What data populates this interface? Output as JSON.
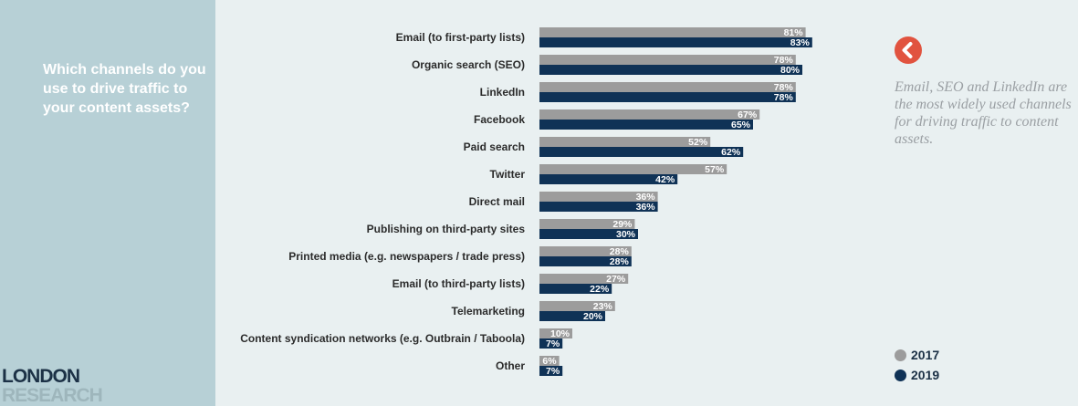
{
  "sidebar": {
    "question": "Which channels do you use to drive traffic to your content assets?",
    "logo_line1": "LONDON",
    "logo_line2": "RESEARCH"
  },
  "note": {
    "icon": "chevron-left-icon",
    "text": "Email, SEO and LinkedIn are the most widely used channels for driving traffic to content assets."
  },
  "colors": {
    "series_2017": "#9c9c9c",
    "series_2019": "#0f3256",
    "accent": "#e1533f"
  },
  "chart_data": {
    "type": "bar",
    "orientation": "horizontal",
    "categories": [
      "Email (to first-party lists)",
      "Organic search (SEO)",
      "LinkedIn",
      "Facebook",
      "Paid search",
      "Twitter",
      "Direct mail",
      "Publishing on third-party sites",
      "Printed media (e.g. newspapers / trade press)",
      "Email (to third-party lists)",
      "Telemarketing",
      "Content syndication networks (e.g. Outbrain / Taboola)",
      "Other"
    ],
    "series": [
      {
        "name": "2017",
        "values": [
          81,
          78,
          78,
          67,
          52,
          57,
          36,
          29,
          28,
          27,
          23,
          10,
          6
        ]
      },
      {
        "name": "2019",
        "values": [
          83,
          80,
          78,
          65,
          62,
          42,
          36,
          30,
          28,
          22,
          20,
          7,
          7
        ]
      }
    ],
    "value_suffix": "%",
    "xlim": [
      0,
      100
    ],
    "legend_position": "bottom-right",
    "grid": false
  }
}
